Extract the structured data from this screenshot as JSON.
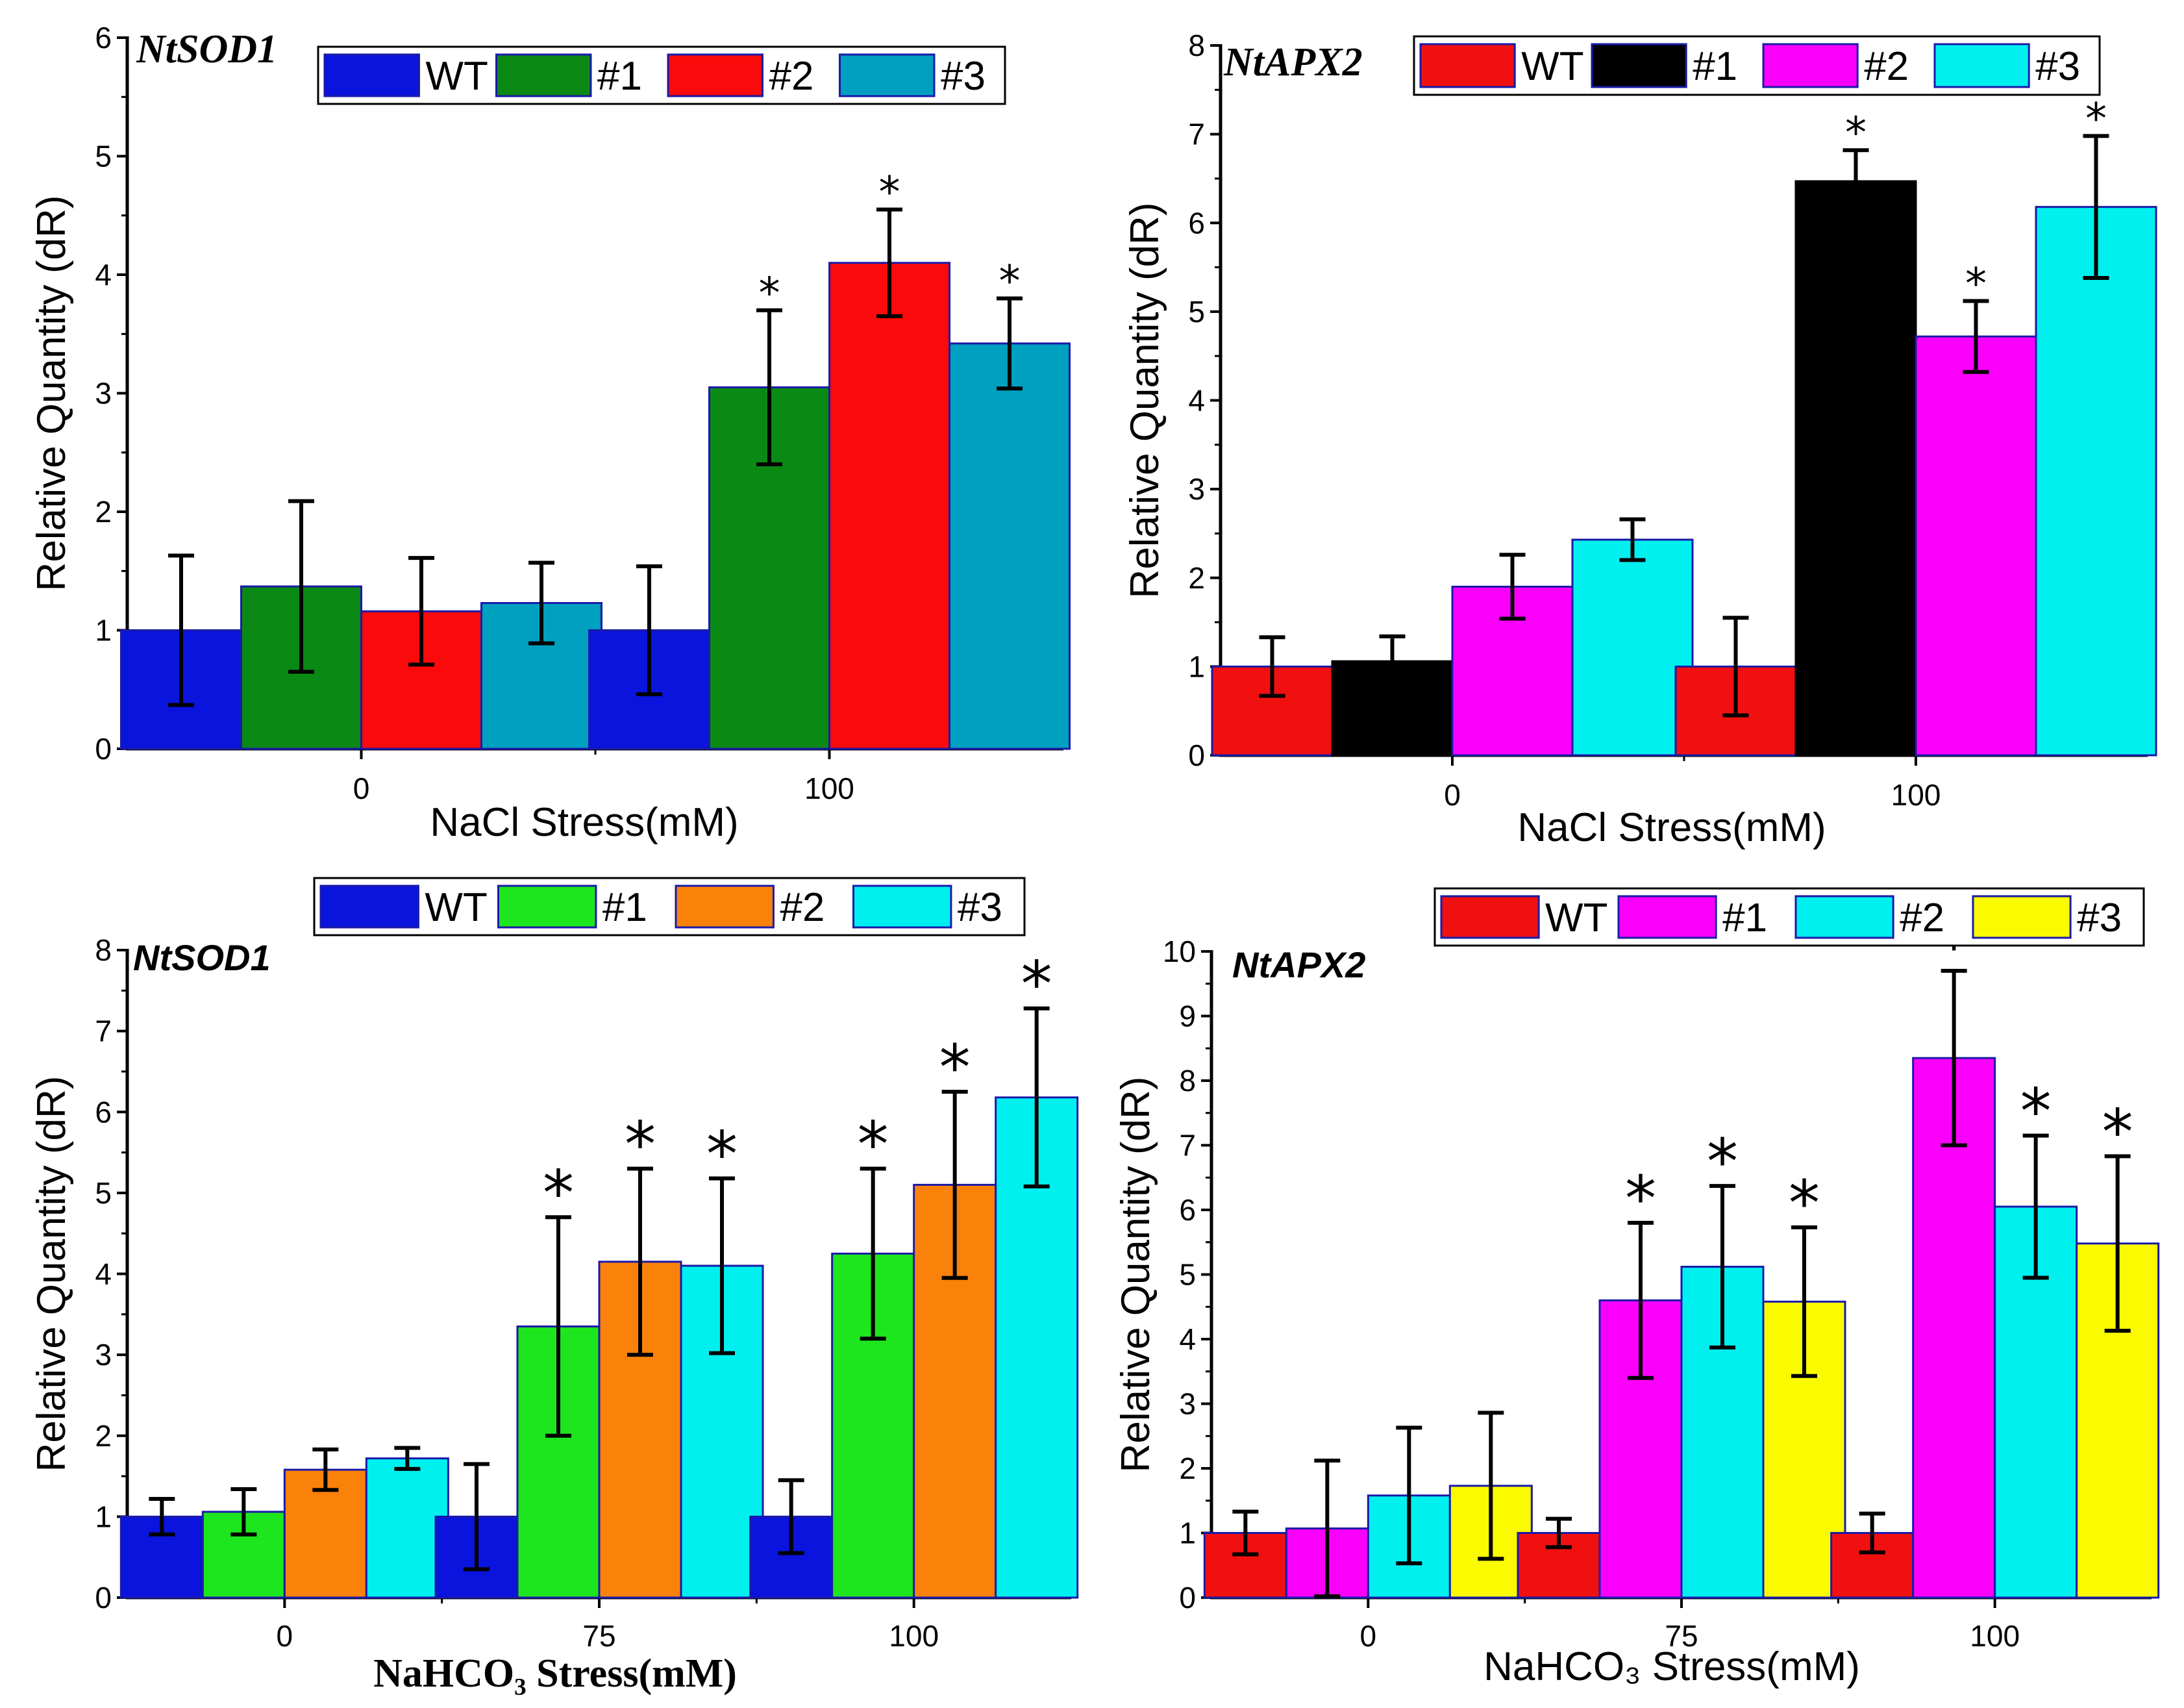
{
  "chart_data": [
    {
      "type": "bar",
      "title": "NtSOD1",
      "title_style": "serif",
      "xlabel": "NaCl Stress(mM)",
      "xlabel_style": "sans",
      "ylabel": "Relative Quantity (dR)",
      "categories": [
        "0",
        "100"
      ],
      "ylim": [
        0,
        6
      ],
      "yticks": [
        "0",
        "1",
        "2",
        "3",
        "4",
        "5",
        "6"
      ],
      "series": [
        {
          "name": "WT",
          "color": "#0a14dc",
          "values": [
            1.0,
            1.0
          ],
          "errors": [
            0.63,
            0.54
          ],
          "significant": [
            false,
            false
          ]
        },
        {
          "name": "#1",
          "color": "#0a8a14",
          "values": [
            1.37,
            3.05
          ],
          "errors": [
            0.72,
            0.65
          ],
          "significant": [
            false,
            true
          ]
        },
        {
          "name": "#2",
          "color": "#fa0a0a",
          "values": [
            1.16,
            4.1
          ],
          "errors": [
            0.45,
            0.45
          ],
          "significant": [
            false,
            true
          ]
        },
        {
          "name": "#3",
          "color": "#00a0c0",
          "values": [
            1.23,
            3.42
          ],
          "errors": [
            0.34,
            0.38
          ],
          "significant": [
            false,
            true
          ]
        }
      ]
    },
    {
      "type": "bar",
      "title": "NtAPX2",
      "title_style": "serif",
      "xlabel": "NaCl Stress(mM)",
      "xlabel_style": "sans",
      "ylabel": "Relative Quantity (dR)",
      "categories": [
        "0",
        "100"
      ],
      "ylim": [
        0,
        8
      ],
      "yticks": [
        "0",
        "1",
        "2",
        "3",
        "4",
        "5",
        "6",
        "7",
        "8"
      ],
      "series": [
        {
          "name": "WT",
          "color": "#f01010",
          "values": [
            1.0,
            1.0
          ],
          "errors": [
            0.33,
            0.55
          ],
          "significant": [
            false,
            false
          ]
        },
        {
          "name": "#1",
          "color": "#000000",
          "values": [
            1.06,
            6.47
          ],
          "errors": [
            0.28,
            0.35
          ],
          "significant": [
            false,
            true
          ]
        },
        {
          "name": "#2",
          "color": "#fa00fa",
          "values": [
            1.9,
            4.72
          ],
          "errors": [
            0.36,
            0.4
          ],
          "significant": [
            false,
            true
          ]
        },
        {
          "name": "#3",
          "color": "#00f0f0",
          "values": [
            2.43,
            6.18
          ],
          "errors": [
            0.23,
            0.8
          ],
          "significant": [
            false,
            true
          ]
        }
      ]
    },
    {
      "type": "bar",
      "title": "NtSOD1",
      "title_style": "sans",
      "xlabel": "NaHCO₃ Stress(mM)",
      "xlabel_style": "serif",
      "ylabel": "Relative Quantity (dR)",
      "categories": [
        "0",
        "75",
        "100"
      ],
      "ylim": [
        0,
        8
      ],
      "yticks": [
        "0",
        "1",
        "2",
        "3",
        "4",
        "5",
        "6",
        "7",
        "8"
      ],
      "series": [
        {
          "name": "WT",
          "color": "#0a14dc",
          "values": [
            1.0,
            1.0,
            1.0
          ],
          "errors": [
            0.22,
            0.65,
            0.45
          ],
          "significant": [
            false,
            false,
            false
          ]
        },
        {
          "name": "#1",
          "color": "#1ee61e",
          "values": [
            1.06,
            3.35,
            4.25
          ],
          "errors": [
            0.28,
            1.35,
            1.05
          ],
          "significant": [
            false,
            true,
            true
          ]
        },
        {
          "name": "#2",
          "color": "#fa820a",
          "values": [
            1.58,
            4.15,
            5.1
          ],
          "errors": [
            0.25,
            1.15,
            1.15
          ],
          "significant": [
            false,
            true,
            true
          ]
        },
        {
          "name": "#3",
          "color": "#00f0f0",
          "values": [
            1.72,
            4.1,
            6.18
          ],
          "errors": [
            0.13,
            1.08,
            1.1
          ],
          "significant": [
            false,
            true,
            true
          ]
        }
      ]
    },
    {
      "type": "bar",
      "title": "NtAPX2",
      "title_style": "sans",
      "xlabel": "NaHCO₃ Stress(mM)",
      "xlabel_style": "sans",
      "ylabel": "Relative Quantity (dR)",
      "categories": [
        "0",
        "75",
        "100"
      ],
      "ylim": [
        0,
        10
      ],
      "yticks": [
        "0",
        "1",
        "2",
        "3",
        "4",
        "5",
        "6",
        "7",
        "8",
        "9",
        "10"
      ],
      "series": [
        {
          "name": "WT",
          "color": "#f01010",
          "values": [
            1.0,
            1.0,
            1.0
          ],
          "errors": [
            0.33,
            0.22,
            0.3
          ],
          "significant": [
            false,
            false,
            false
          ]
        },
        {
          "name": "#1",
          "color": "#fa00fa",
          "values": [
            1.07,
            4.6,
            8.35
          ],
          "errors": [
            1.05,
            1.2,
            1.35
          ],
          "significant": [
            false,
            true,
            true
          ]
        },
        {
          "name": "#2",
          "color": "#00f0f0",
          "values": [
            1.58,
            5.12,
            6.05
          ],
          "errors": [
            1.05,
            1.25,
            1.1
          ],
          "significant": [
            false,
            true,
            true
          ]
        },
        {
          "name": "#3",
          "color": "#fafa00",
          "values": [
            1.73,
            4.58,
            5.48
          ],
          "errors": [
            1.13,
            1.15,
            1.35
          ],
          "significant": [
            false,
            true,
            true
          ]
        }
      ]
    }
  ]
}
